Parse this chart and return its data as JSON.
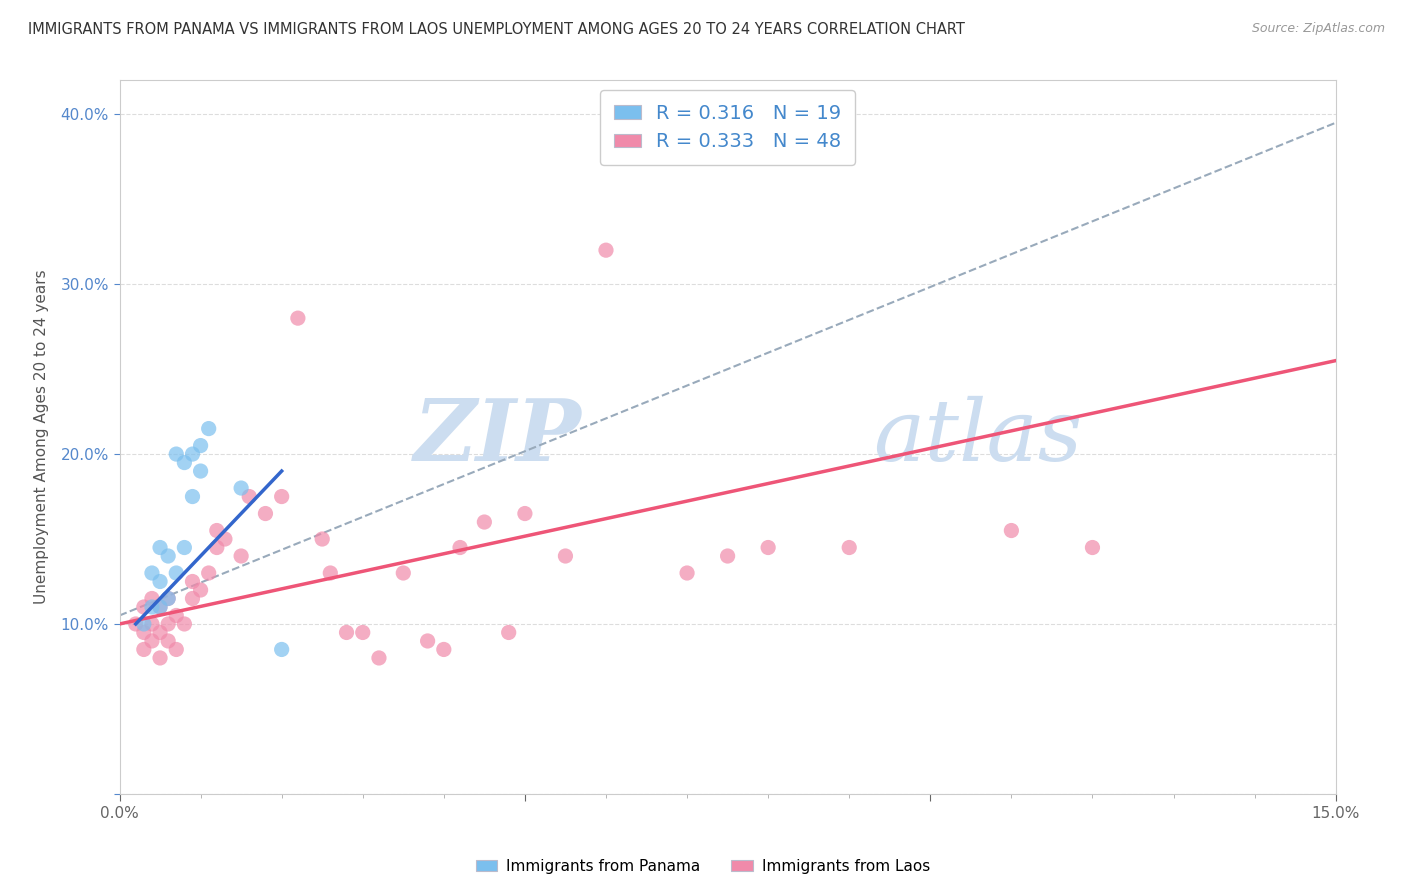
{
  "title": "IMMIGRANTS FROM PANAMA VS IMMIGRANTS FROM LAOS UNEMPLOYMENT AMONG AGES 20 TO 24 YEARS CORRELATION CHART",
  "source": "Source: ZipAtlas.com",
  "ylabel": "Unemployment Among Ages 20 to 24 years",
  "xlim": [
    0.0,
    0.15
  ],
  "ylim": [
    0.0,
    0.42
  ],
  "panama_R": "0.316",
  "panama_N": "19",
  "laos_R": "0.333",
  "laos_N": "48",
  "panama_color": "#7bbfee",
  "laos_color": "#f08aaa",
  "panama_line_color": "#3366cc",
  "laos_line_color": "#ee5577",
  "dashed_line_color": "#99aabb",
  "watermark_color": "#ccddf0",
  "watermark": "ZIPatlas",
  "panama_scatter_x": [
    0.003,
    0.004,
    0.004,
    0.005,
    0.005,
    0.005,
    0.006,
    0.006,
    0.007,
    0.007,
    0.008,
    0.008,
    0.009,
    0.009,
    0.01,
    0.01,
    0.011,
    0.015,
    0.02
  ],
  "panama_scatter_y": [
    0.1,
    0.11,
    0.13,
    0.11,
    0.125,
    0.145,
    0.115,
    0.14,
    0.13,
    0.2,
    0.145,
    0.195,
    0.175,
    0.2,
    0.19,
    0.205,
    0.215,
    0.18,
    0.085
  ],
  "laos_scatter_x": [
    0.002,
    0.003,
    0.003,
    0.003,
    0.004,
    0.004,
    0.004,
    0.005,
    0.005,
    0.005,
    0.006,
    0.006,
    0.006,
    0.007,
    0.007,
    0.008,
    0.009,
    0.009,
    0.01,
    0.011,
    0.012,
    0.012,
    0.013,
    0.015,
    0.016,
    0.018,
    0.02,
    0.022,
    0.025,
    0.026,
    0.028,
    0.03,
    0.032,
    0.035,
    0.038,
    0.04,
    0.042,
    0.045,
    0.048,
    0.05,
    0.055,
    0.06,
    0.07,
    0.075,
    0.08,
    0.09,
    0.11,
    0.12
  ],
  "laos_scatter_y": [
    0.1,
    0.085,
    0.095,
    0.11,
    0.09,
    0.1,
    0.115,
    0.08,
    0.095,
    0.11,
    0.09,
    0.1,
    0.115,
    0.085,
    0.105,
    0.1,
    0.115,
    0.125,
    0.12,
    0.13,
    0.145,
    0.155,
    0.15,
    0.14,
    0.175,
    0.165,
    0.175,
    0.28,
    0.15,
    0.13,
    0.095,
    0.095,
    0.08,
    0.13,
    0.09,
    0.085,
    0.145,
    0.16,
    0.095,
    0.165,
    0.14,
    0.32,
    0.13,
    0.14,
    0.145,
    0.145,
    0.155,
    0.145
  ],
  "legend_label_panama": "Immigrants from Panama",
  "legend_label_laos": "Immigrants from Laos",
  "background_color": "#ffffff",
  "grid_color": "#dddddd",
  "panama_line_x": [
    0.002,
    0.02
  ],
  "panama_line_y": [
    0.1,
    0.19
  ],
  "laos_line_x": [
    0.0,
    0.15
  ],
  "laos_line_y": [
    0.1,
    0.255
  ],
  "dashed_line_x": [
    0.0,
    0.15
  ],
  "dashed_line_y": [
    0.105,
    0.395
  ]
}
